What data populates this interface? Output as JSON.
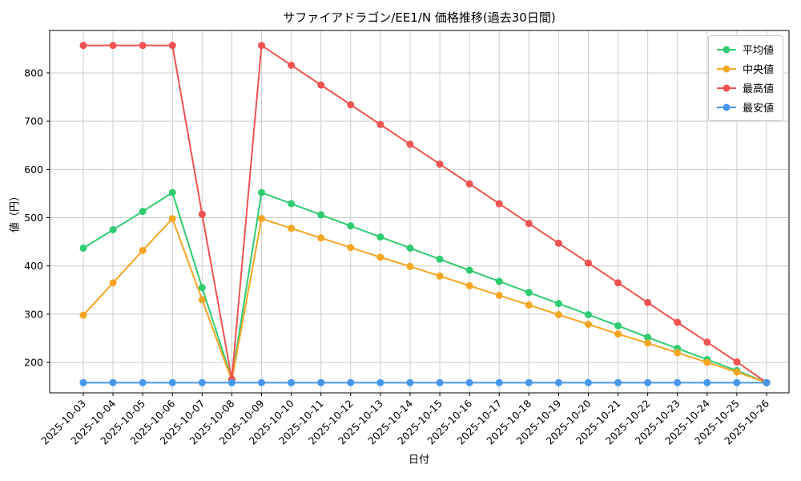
{
  "chart_data": {
    "type": "line",
    "title": "サファイアドラゴン/EE1/N 価格推移(過去30日間)",
    "xlabel": "日付",
    "ylabel": "値（円）",
    "ylim": [
      137,
      888
    ],
    "yticks": [
      200,
      300,
      400,
      500,
      600,
      700,
      800
    ],
    "grid": true,
    "legend_position": "upper right",
    "categories": [
      "2025-10-03",
      "2025-10-04",
      "2025-10-05",
      "2025-10-06",
      "2025-10-07",
      "2025-10-08",
      "2025-10-09",
      "2025-10-10",
      "2025-10-11",
      "2025-10-12",
      "2025-10-13",
      "2025-10-14",
      "2025-10-15",
      "2025-10-16",
      "2025-10-17",
      "2025-10-18",
      "2025-10-19",
      "2025-10-20",
      "2025-10-21",
      "2025-10-22",
      "2025-10-23",
      "2025-10-24",
      "2025-10-25",
      "2025-10-26"
    ],
    "series": [
      {
        "key": "average",
        "name": "平均値",
        "color": "#2ecc71",
        "values": [
          437,
          475,
          513,
          552,
          355,
          165,
          552,
          529,
          506,
          483,
          460,
          437,
          414,
          391,
          368,
          345,
          322,
          299,
          276,
          252,
          229,
          206,
          183,
          158
        ]
      },
      {
        "key": "median",
        "name": "中央値",
        "color": "#f5a623",
        "values": [
          298,
          365,
          432,
          498,
          330,
          163,
          498,
          478,
          458,
          438,
          418,
          399,
          379,
          359,
          339,
          319,
          299,
          279,
          259,
          240,
          220,
          200,
          180,
          158
        ]
      },
      {
        "key": "max",
        "name": "最高値",
        "color": "#ef5350",
        "values": [
          857,
          857,
          857,
          857,
          507,
          165,
          857,
          816,
          775,
          734,
          693,
          652,
          611,
          570,
          529,
          488,
          447,
          406,
          365,
          324,
          283,
          242,
          201,
          158
        ]
      },
      {
        "key": "min",
        "name": "最安値",
        "color": "#4696ec",
        "values": [
          158,
          158,
          158,
          158,
          158,
          158,
          158,
          158,
          158,
          158,
          158,
          158,
          158,
          158,
          158,
          158,
          158,
          158,
          158,
          158,
          158,
          158,
          158,
          158
        ]
      }
    ]
  }
}
